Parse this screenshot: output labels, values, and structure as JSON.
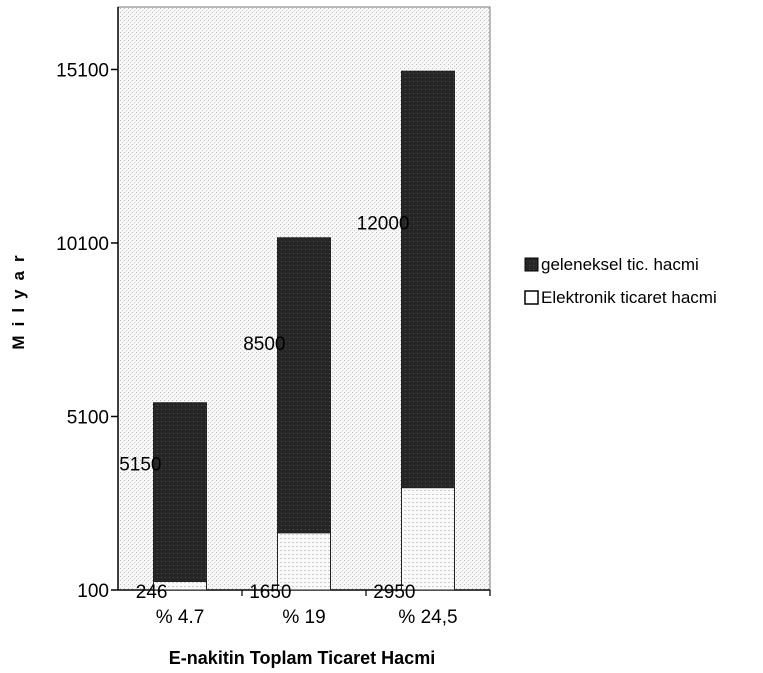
{
  "chart_data": {
    "type": "bar",
    "stacked": true,
    "categories": [
      "% 4.7",
      "% 19",
      "% 24,5"
    ],
    "series": [
      {
        "name": "Elektronik ticaret hacmi",
        "values": [
          246,
          1650,
          2950
        ],
        "labels": [
          "246",
          "1650",
          "2950"
        ],
        "color": "#f4f4f4"
      },
      {
        "name": "geleneksel tic. hacmi",
        "values": [
          5150,
          8500,
          12000
        ],
        "labels": [
          "5150",
          "8500",
          "12000"
        ],
        "color": "#262626"
      }
    ],
    "yticks": [
      "100",
      "5100",
      "10100",
      "15100"
    ],
    "ylim": [
      100,
      16900
    ],
    "xlabel": "E-nakitin Toplam Ticaret Hacmi",
    "ylabel": "Milyar",
    "legend": {
      "position": "right",
      "order": [
        "geleneksel tic. hacmi",
        "Elektronik ticaret hacmi"
      ]
    },
    "grid": false
  }
}
